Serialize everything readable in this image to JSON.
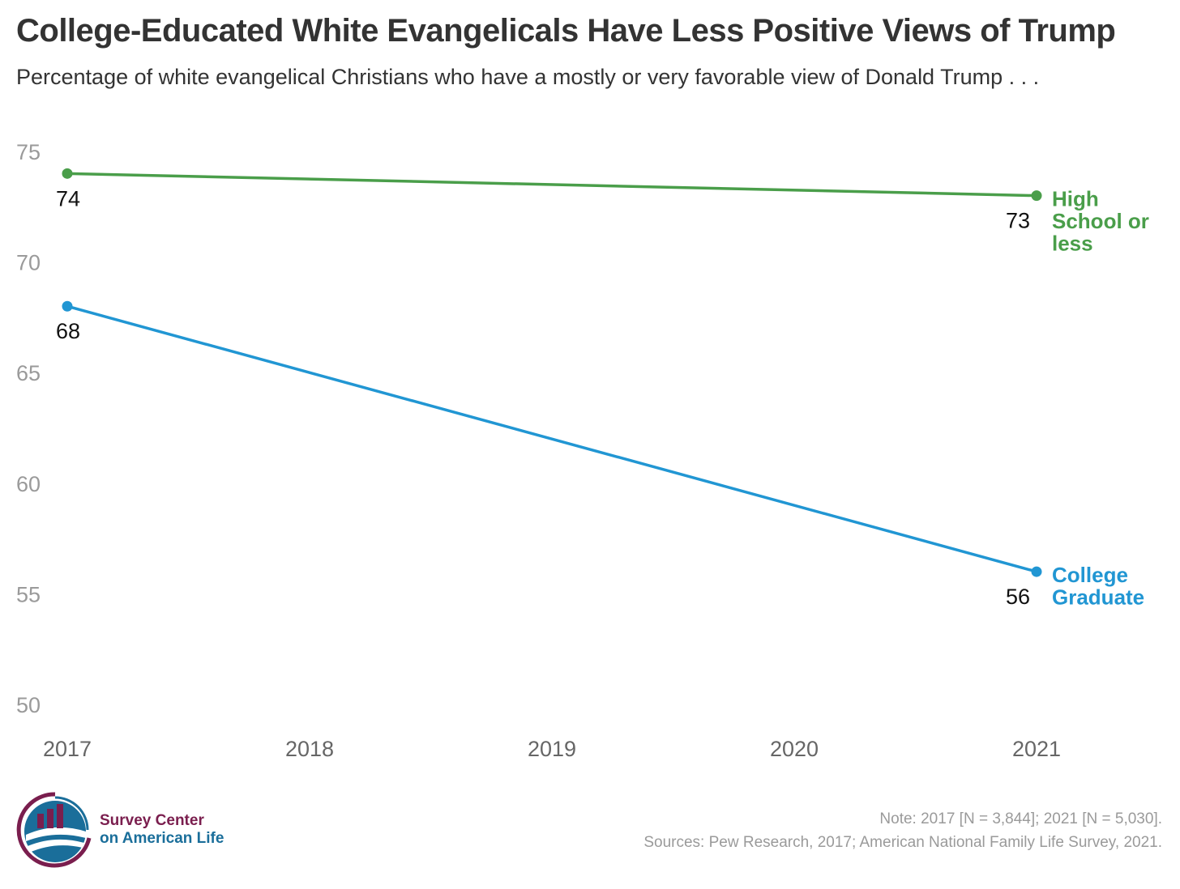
{
  "title": "College-Educated White Evangelicals Have Less Positive Views of Trump",
  "subtitle": "Percentage of white evangelical Christians who have a mostly or very favorable view of Donald Trump . . .",
  "chart_data": {
    "type": "line",
    "title": "College-Educated White Evangelicals Have Less Positive Views of Trump",
    "subtitle": "Percentage of white evangelical Christians who have a mostly or very favorable view of Donald Trump . . .",
    "x_ticks": [
      "2017",
      "2018",
      "2019",
      "2020",
      "2021"
    ],
    "y_ticks": [
      "50",
      "55",
      "60",
      "65",
      "70",
      "75"
    ],
    "ylim": [
      50,
      75
    ],
    "xlim": [
      2017,
      2021
    ],
    "grid": false,
    "legend": "labels at right end of lines",
    "series": [
      {
        "name": "High School or less",
        "name_lines": [
          "High",
          "School or",
          "less"
        ],
        "color": "#4a9e4a",
        "x": [
          2017,
          2021
        ],
        "values": [
          74,
          73
        ],
        "labels": [
          "74",
          "73"
        ]
      },
      {
        "name": "College Graduate",
        "name_lines": [
          "College",
          "Graduate"
        ],
        "color": "#2196d3",
        "x": [
          2017,
          2021
        ],
        "values": [
          68,
          56
        ],
        "labels": [
          "68",
          "56"
        ]
      }
    ]
  },
  "logo": {
    "line1": "Survey Center",
    "line2": "on American Life"
  },
  "note": "Note: 2017 [N = 3,844]; 2021 [N = 5,030].",
  "sources": "Sources: Pew Research, 2017; American National Family Life Survey, 2021."
}
